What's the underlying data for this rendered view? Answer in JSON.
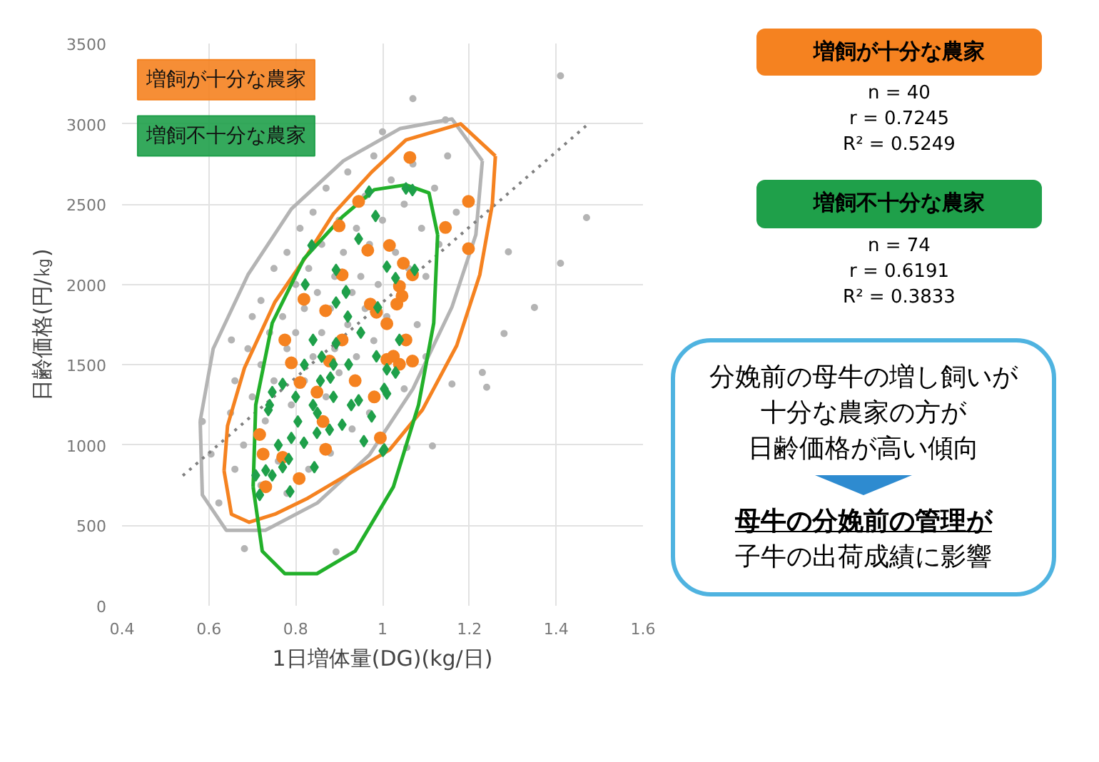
{
  "chart_data": {
    "type": "scatter",
    "xlabel": "1日増体量(DG)(kg/日)",
    "ylabel": "日齢価格(円/㎏)",
    "xlim": [
      0.4,
      1.6
    ],
    "ylim": [
      0,
      3500
    ],
    "xticks": [
      0.4,
      0.6,
      0.8,
      1,
      1.2,
      1.4,
      1.6
    ],
    "yticks": [
      0,
      500,
      1000,
      1500,
      2000,
      2500,
      3000,
      3500
    ],
    "grid": true,
    "legend": false,
    "series": [
      {
        "marker": "circle",
        "color": "#b4b4b4",
        "x": [
          1.47,
          1.41,
          1.41,
          1.35,
          1.29,
          1.28,
          1.23,
          1.24,
          1.16,
          1.07,
          1.145,
          1.115,
          1.056,
          0.893,
          0.682,
          0.585,
          0.605,
          0.652,
          0.623,
          0.65,
          0.66,
          0.68,
          0.69,
          0.7,
          0.7,
          0.72,
          0.72,
          0.73,
          0.74,
          0.75,
          0.75,
          0.76,
          0.77,
          0.78,
          0.78,
          0.79,
          0.8,
          0.8,
          0.81,
          0.82,
          0.82,
          0.83,
          0.84,
          0.84,
          0.85,
          0.86,
          0.86,
          0.87,
          0.87,
          0.88,
          0.89,
          0.89,
          0.9,
          0.9,
          0.91,
          0.92,
          0.92,
          0.93,
          0.94,
          0.94,
          0.95,
          0.96,
          0.96,
          0.97,
          0.98,
          0.98,
          0.99,
          1.0,
          1.01,
          1.02,
          1.03,
          1.05,
          1.06,
          1.07,
          1.08,
          1.09,
          1.1,
          1.12,
          1.13,
          1.15,
          1.17,
          0.97,
          0.93,
          0.88,
          0.83,
          0.78,
          0.72,
          0.66,
          1.05,
          1.1,
          1.0
        ],
        "values": [
          2416,
          3299,
          2132,
          1857,
          2203,
          1695,
          1452,
          1360,
          1380,
          3157,
          3025,
          995,
          985,
          335,
          355,
          1147,
          944,
          1655,
          640,
          1200,
          1400,
          1000,
          1600,
          1300,
          1800,
          1500,
          1900,
          1150,
          1700,
          2100,
          1400,
          900,
          1800,
          1600,
          2200,
          1250,
          2000,
          1700,
          2350,
          1400,
          1850,
          2100,
          1550,
          2450,
          1950,
          1700,
          2250,
          1300,
          2600,
          1850,
          2050,
          1600,
          2400,
          1450,
          2200,
          1750,
          2700,
          1950,
          2350,
          1550,
          2050,
          2550,
          1850,
          2250,
          1650,
          2800,
          2000,
          2400,
          1800,
          2650,
          2200,
          2500,
          2100,
          2750,
          1750,
          2350,
          2050,
          2600,
          2250,
          2800,
          2450,
          1200,
          1100,
          950,
          850,
          700,
          750,
          850,
          1350,
          1550,
          2950
        ]
      },
      {
        "type": "line",
        "line_style": "solid",
        "color": "#b4b4b4",
        "x": [
          0.58,
          0.61,
          0.69,
          0.79,
          0.91,
          1.04,
          1.16,
          1.23,
          null,
          0.58,
          0.585,
          0.64,
          0.73,
          0.85,
          0.97,
          1.07,
          1.16,
          1.215,
          1.23
        ],
        "values": [
          1150,
          1600,
          2060,
          2470,
          2770,
          2970,
          3030,
          2770,
          null,
          1150,
          690,
          470,
          470,
          640,
          940,
          1350,
          1860,
          2310,
          2770
        ]
      },
      {
        "type": "line",
        "line_style": "dotted",
        "color": "#808080",
        "x": [
          0.54,
          1.47
        ],
        "values": [
          810,
          2990
        ]
      },
      {
        "type": "line",
        "line_style": "solid",
        "color": "#f58220",
        "x": [
          0.635,
          0.643,
          0.682,
          0.752,
          0.828,
          0.887,
          0.975,
          1.054,
          1.18,
          1.26,
          null,
          0.635,
          0.652,
          0.693,
          0.752,
          0.828,
          1.016,
          1.092,
          1.171,
          1.224,
          1.253,
          1.26
        ],
        "values": [
          840,
          1120,
          1480,
          1890,
          2190,
          2440,
          2700,
          2900,
          3000,
          2800,
          null,
          840,
          570,
          520,
          570,
          670,
          970,
          1220,
          1620,
          2060,
          2500,
          2800
        ]
      },
      {
        "type": "line",
        "line_style": "solid",
        "color": "#22b02a",
        "x": [
          0.702,
          0.708,
          0.746,
          0.819,
          0.907,
          0.981,
          1.054,
          1.107,
          1.127,
          null,
          0.702,
          0.723,
          0.775,
          0.849,
          0.937,
          1.025,
          1.083,
          1.118,
          1.127
        ],
        "values": [
          740,
          1250,
          1760,
          2160,
          2420,
          2590,
          2620,
          2570,
          2310,
          null,
          740,
          340,
          200,
          200,
          340,
          740,
          1250,
          1760,
          2310
        ]
      },
      {
        "marker": "circle",
        "name": "増飼が十分な農家",
        "color": "#f58220",
        "x": [
          0.945,
          0.9,
          0.869,
          0.972,
          0.986,
          1.016,
          0.79,
          0.81,
          0.849,
          0.717,
          0.725,
          0.77,
          0.869,
          1.01,
          0.878,
          1.063,
          1.198,
          1.145,
          1.198,
          1.048,
          1.039,
          1.045,
          1.01,
          1.025,
          1.069,
          1.033,
          1.054,
          0.907,
          0.981,
          0.808,
          0.731,
          0.863,
          0.937,
          0.995,
          0.775,
          0.907,
          0.966,
          1.039,
          0.819,
          1.069
        ],
        "values": [
          2517,
          2365,
          1837,
          1878,
          1827,
          2243,
          1512,
          1390,
          1330,
          1066,
          944,
          924,
          974,
          1533,
          1523,
          2791,
          2517,
          2355,
          2223,
          2132,
          1989,
          1928,
          1756,
          1553,
          1523,
          1878,
          1655,
          1655,
          1300,
          792,
          741,
          1147,
          1401,
          1045,
          1655,
          2060,
          2213,
          1503,
          1908,
          2060
        ]
      },
      {
        "marker": "diamond",
        "name": "増飼不十分な農家",
        "color": "#1fa04a",
        "x": [
          0.969,
          0.984,
          0.837,
          0.822,
          0.893,
          0.945,
          0.916,
          0.989,
          0.916,
          0.893,
          0.84,
          0.893,
          0.887,
          0.922,
          0.986,
          0.857,
          0.746,
          0.74,
          0.84,
          0.887,
          0.928,
          0.975,
          0.945,
          0.805,
          0.79,
          0.819,
          0.849,
          0.878,
          0.907,
          0.957,
          1.004,
          0.843,
          0.784,
          0.731,
          0.708,
          0.746,
          0.77,
          0.717,
          0.787,
          0.737,
          0.77,
          1.054,
          1.069,
          1.01,
          1.074,
          1.03,
          1.039,
          1.01,
          1.03,
          1.004,
          1.01,
          1.001,
          0.85,
          0.88,
          0.95,
          0.82,
          0.92,
          0.76,
          0.8,
          0.86
        ],
        "values": [
          2578,
          2426,
          2243,
          2000,
          2091,
          2284,
          1959,
          1857,
          1949,
          1888,
          1655,
          1634,
          1502,
          1502,
          1553,
          1401,
          1330,
          1249,
          1249,
          1300,
          1249,
          1178,
          1279,
          1147,
          1045,
          1015,
          1076,
          1096,
          1127,
          1025,
          974,
          863,
          914,
          843,
          812,
          812,
          863,
          690,
          711,
          1218,
          1381,
          2598,
          2588,
          2111,
          2091,
          2040,
          1655,
          1472,
          1452,
          1350,
          1320,
          964,
          1200,
          1420,
          1700,
          1500,
          1800,
          1000,
          1300,
          1550
        ]
      }
    ],
    "annotations": [
      "増飼が十分な農家",
      "n = 40",
      "r = 0.7245",
      "R² = 0.5249",
      "増飼不十分な農家",
      "n = 74",
      "r = 0.6191",
      "R² = 0.3833",
      "分娩前の母牛の増し飼いが",
      "十分な農家の方が",
      "日齢価格が高い傾向",
      "母牛の分娩前の管理が",
      "子牛の出荷成績に影響"
    ]
  }
}
